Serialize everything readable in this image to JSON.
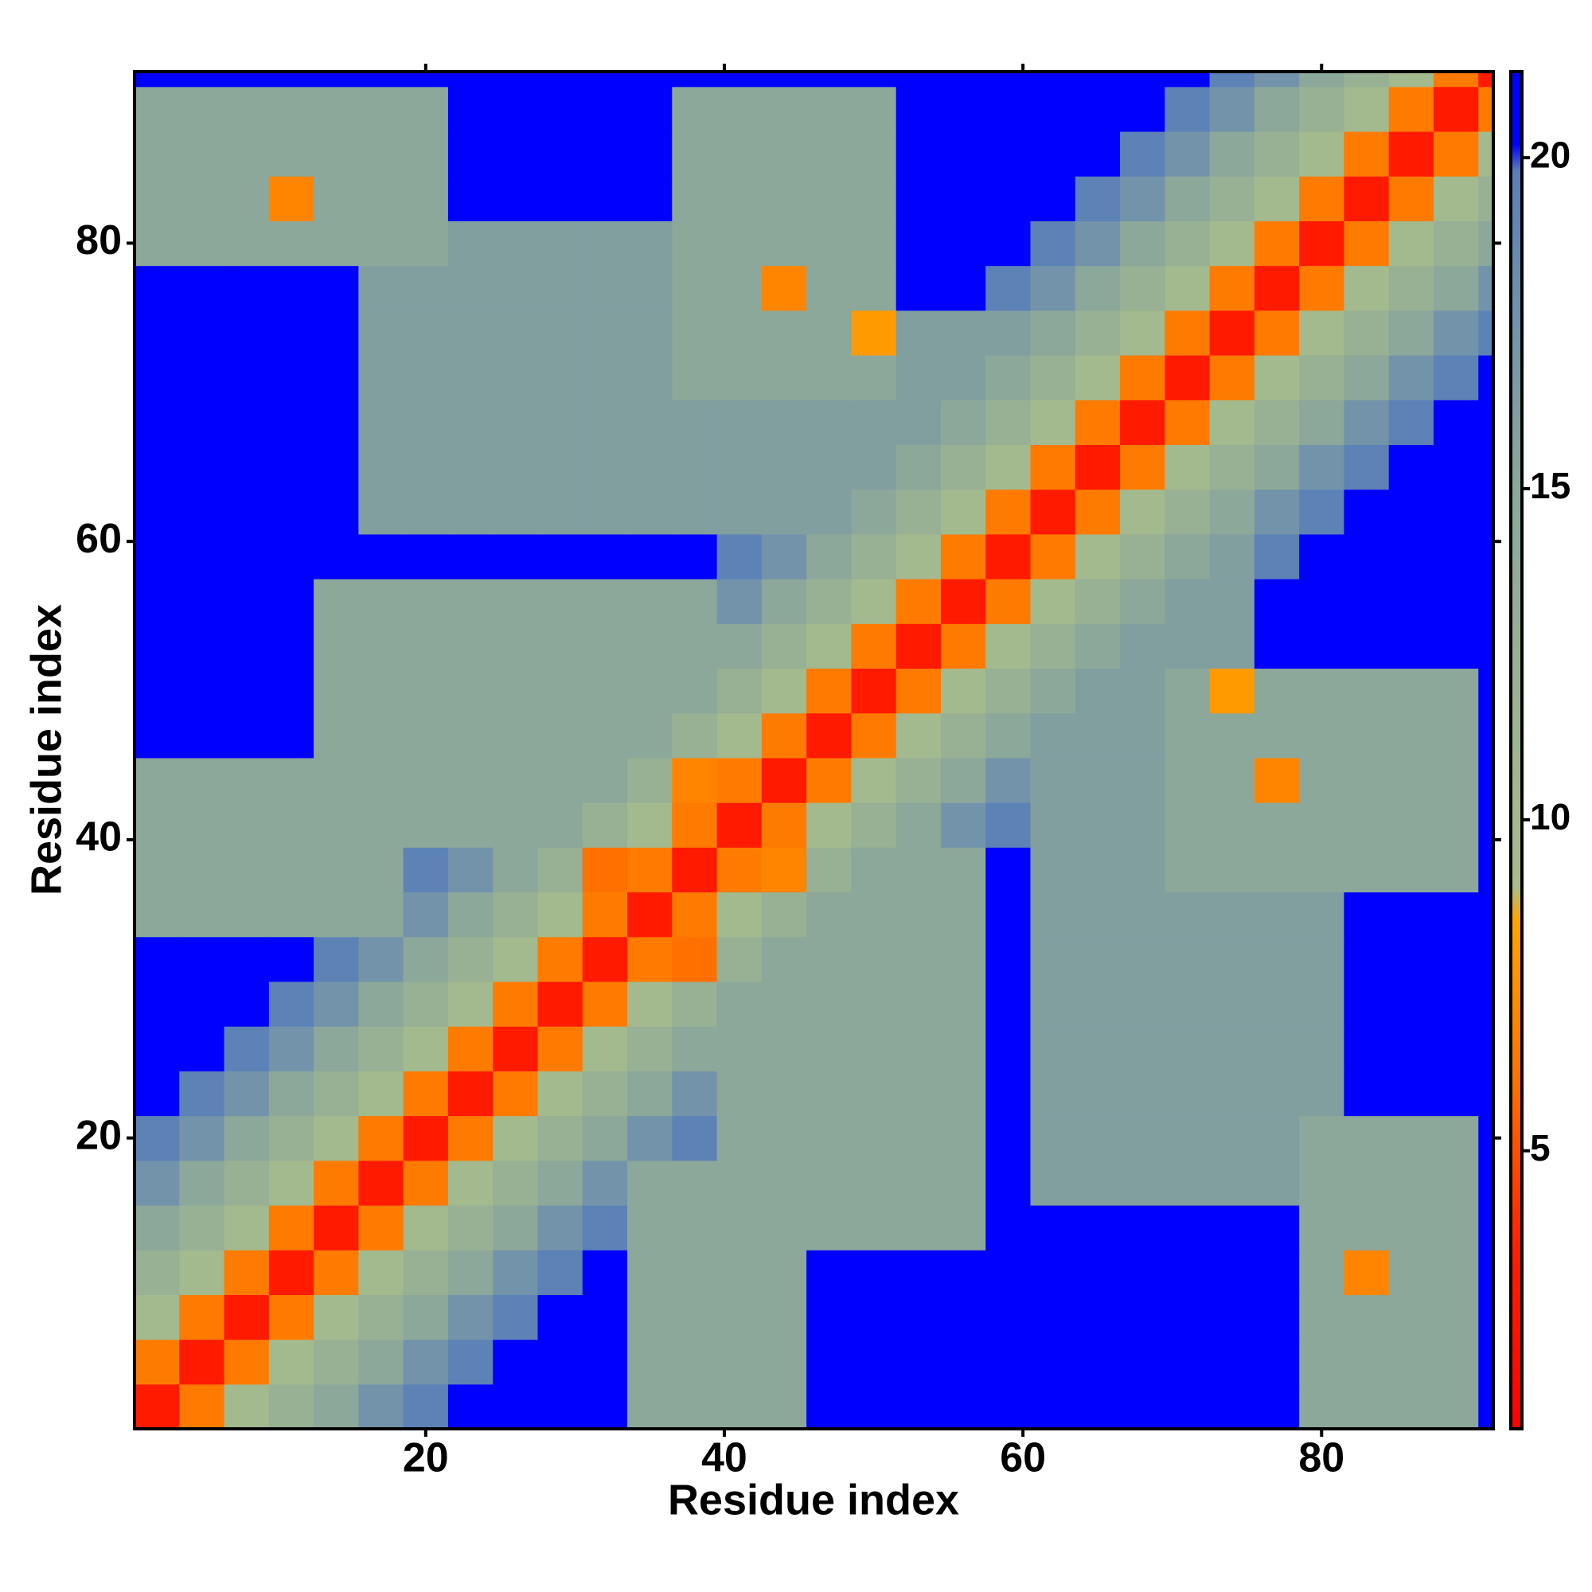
{
  "chart_data": {
    "type": "heatmap",
    "xlabel": "Residue index",
    "ylabel": "Residue index",
    "xbins": [
      0.5,
      3.5,
      6.5,
      9.5,
      12.5,
      15.5,
      18.5,
      21.5,
      24.5,
      27.5,
      30.5,
      33.5,
      36.5,
      39.5,
      42.5,
      45.5,
      48.5,
      51.5,
      54.5,
      57.5,
      60.5,
      63.5,
      66.5,
      69.5,
      72.5,
      75.5,
      78.5,
      81.5,
      84.5,
      87.5,
      90.5,
      91.5
    ],
    "ybins": [
      0.5,
      3.5,
      6.5,
      9.5,
      12.5,
      15.5,
      18.5,
      21.5,
      24.5,
      27.5,
      30.5,
      33.5,
      36.5,
      39.5,
      42.5,
      45.5,
      48.5,
      51.5,
      54.5,
      57.5,
      60.5,
      63.5,
      66.5,
      69.5,
      72.5,
      75.5,
      78.5,
      81.5,
      84.5,
      87.5,
      90.5,
      91.5
    ],
    "xlim": [
      0.5,
      91.5
    ],
    "ylim": [
      0.5,
      91.5
    ],
    "xticks": [
      20,
      40,
      60,
      80
    ],
    "yticks": [
      20,
      40,
      60,
      80
    ],
    "colorbar": {
      "lim": [
        0.8,
        21.3
      ],
      "ticks": [
        5,
        10,
        15,
        20
      ]
    },
    "colorscale": [
      [
        0.8,
        "#ff0000"
      ],
      [
        3.5,
        "#ff2000"
      ],
      [
        6,
        "#ff7000"
      ],
      [
        8.5,
        "#ffa500"
      ],
      [
        9,
        "#a8bc8c"
      ],
      [
        15,
        "#8ca89a"
      ],
      [
        19.8,
        "#5a7fb8"
      ],
      [
        20.2,
        "#0000ff"
      ],
      [
        21.3,
        "#0000ff"
      ]
    ],
    "values": [
      [
        3,
        6.5,
        10,
        12.5,
        15,
        17.5,
        19.5,
        21,
        21,
        21,
        21,
        15,
        15,
        15,
        15,
        21,
        21,
        21,
        21,
        21,
        21,
        21,
        21,
        21,
        21,
        21,
        15,
        15,
        15,
        15,
        21
      ],
      [
        6.5,
        3,
        6.5,
        10,
        12.5,
        15,
        17.5,
        19.5,
        21,
        21,
        21,
        15,
        15,
        15,
        15,
        21,
        21,
        21,
        21,
        21,
        21,
        21,
        21,
        21,
        21,
        21,
        15,
        15,
        15,
        15,
        21
      ],
      [
        10,
        6.5,
        3,
        6.5,
        10,
        12.5,
        15,
        17.5,
        19.5,
        21,
        21,
        15,
        15,
        15,
        15,
        21,
        21,
        21,
        21,
        21,
        21,
        21,
        21,
        21,
        21,
        21,
        15,
        15,
        15,
        15,
        21
      ],
      [
        12.5,
        10,
        6.5,
        3,
        6.5,
        10,
        12.5,
        15,
        17.5,
        19.5,
        21,
        15,
        15,
        15,
        15,
        21,
        21,
        21,
        21,
        21,
        21,
        21,
        21,
        21,
        21,
        21,
        15,
        7,
        15,
        15,
        21
      ],
      [
        15,
        12.5,
        10,
        6.5,
        3,
        6.5,
        10,
        12.5,
        15,
        17.5,
        19.5,
        15,
        15,
        15,
        15,
        15,
        15,
        15,
        15,
        21,
        21,
        21,
        21,
        21,
        21,
        21,
        15,
        15,
        15,
        15,
        21
      ],
      [
        17.5,
        15,
        12.5,
        10,
        6.5,
        3,
        6.5,
        10,
        12.5,
        15,
        17.5,
        15,
        15,
        15,
        15,
        15,
        15,
        15,
        15,
        21,
        16,
        16,
        16,
        16,
        16,
        16,
        15,
        15,
        15,
        15,
        21
      ],
      [
        19.5,
        17.5,
        15,
        12.5,
        10,
        6.5,
        3,
        6.5,
        10,
        12.5,
        15,
        17.5,
        19.5,
        15,
        15,
        15,
        15,
        15,
        15,
        21,
        16,
        16,
        16,
        16,
        16,
        16,
        15,
        15,
        15,
        15,
        21
      ],
      [
        21,
        19.5,
        17.5,
        15,
        12.5,
        10,
        6.5,
        3,
        6.5,
        10,
        12.5,
        15,
        17.5,
        15,
        15,
        15,
        15,
        15,
        15,
        21,
        16,
        16,
        16,
        16,
        16,
        16,
        16,
        21,
        21,
        21,
        21
      ],
      [
        21,
        21,
        19.5,
        17.5,
        15,
        12.5,
        10,
        6.5,
        3,
        6.5,
        10,
        12.5,
        15,
        15,
        15,
        15,
        15,
        15,
        15,
        21,
        16,
        16,
        16,
        16,
        16,
        16,
        16,
        21,
        21,
        21,
        21
      ],
      [
        21,
        21,
        21,
        19.5,
        17.5,
        15,
        12.5,
        10,
        6.5,
        3,
        6.5,
        10,
        12.5,
        15,
        15,
        15,
        15,
        15,
        15,
        21,
        16,
        16,
        16,
        16,
        16,
        16,
        16,
        21,
        21,
        21,
        21
      ],
      [
        21,
        21,
        21,
        21,
        19.5,
        17.5,
        15,
        12.5,
        10,
        6.5,
        3,
        6.5,
        6,
        12.5,
        15,
        15,
        15,
        15,
        15,
        21,
        16,
        16,
        16,
        16,
        16,
        16,
        16,
        21,
        21,
        21,
        21
      ],
      [
        15,
        15,
        15,
        15,
        15,
        15,
        17.5,
        15,
        12.5,
        10,
        6.5,
        3,
        6.5,
        10,
        12.5,
        15,
        15,
        15,
        15,
        21,
        16,
        16,
        16,
        16,
        16,
        16,
        16,
        21,
        21,
        21,
        21
      ],
      [
        15,
        15,
        15,
        15,
        15,
        15,
        19.5,
        17.5,
        15,
        12.5,
        6,
        6.5,
        3,
        6.5,
        7,
        12.5,
        15,
        15,
        15,
        21,
        16,
        16,
        16,
        15,
        15,
        15,
        15,
        15,
        15,
        15,
        21
      ],
      [
        15,
        15,
        15,
        15,
        15,
        15,
        15,
        15,
        15,
        15,
        12.5,
        10,
        6.5,
        3,
        6.5,
        10,
        12.5,
        15,
        17.5,
        19.5,
        16,
        16,
        16,
        15,
        15,
        15,
        15,
        15,
        15,
        15,
        21
      ],
      [
        15,
        15,
        15,
        15,
        15,
        15,
        15,
        15,
        15,
        15,
        15,
        12.5,
        7,
        6.5,
        3,
        6.5,
        10,
        12.5,
        15,
        17.5,
        16,
        16,
        16,
        15,
        15,
        7,
        15,
        15,
        15,
        15,
        21
      ],
      [
        21,
        21,
        21,
        21,
        15,
        15,
        15,
        15,
        15,
        15,
        15,
        15,
        12.5,
        10,
        6.5,
        3,
        6.5,
        10,
        12.5,
        15,
        16,
        16,
        16,
        15,
        15,
        15,
        15,
        15,
        15,
        15,
        21
      ],
      [
        21,
        21,
        21,
        21,
        15,
        15,
        15,
        15,
        15,
        15,
        15,
        15,
        15,
        12.5,
        10,
        6.5,
        3,
        6.5,
        10,
        12.5,
        15,
        16,
        16,
        15,
        8,
        15,
        15,
        15,
        15,
        15,
        21
      ],
      [
        21,
        21,
        21,
        21,
        15,
        15,
        15,
        15,
        15,
        15,
        15,
        15,
        15,
        15,
        12.5,
        10,
        6.5,
        3,
        6.5,
        10,
        12.5,
        15,
        16,
        16,
        16,
        21,
        21,
        21,
        21,
        21,
        21
      ],
      [
        21,
        21,
        21,
        21,
        15,
        15,
        15,
        15,
        15,
        15,
        15,
        15,
        15,
        17.5,
        15,
        12.5,
        10,
        6.5,
        3,
        6.5,
        10,
        12.5,
        15,
        16,
        16,
        21,
        21,
        21,
        21,
        21,
        21
      ],
      [
        21,
        21,
        21,
        21,
        21,
        21,
        21,
        21,
        21,
        21,
        21,
        21,
        21,
        19.5,
        17.5,
        15,
        12.5,
        10,
        6.5,
        3,
        6.5,
        10,
        12.5,
        15,
        16,
        19.5,
        21,
        21,
        21,
        21,
        21
      ],
      [
        21,
        21,
        21,
        21,
        21,
        16,
        16,
        16,
        16,
        16,
        16,
        16,
        16,
        16,
        16,
        16,
        15,
        12.5,
        10,
        6.5,
        3,
        6.5,
        10,
        12.5,
        15,
        17.5,
        19.5,
        21,
        21,
        21,
        21
      ],
      [
        21,
        21,
        21,
        21,
        21,
        16,
        16,
        16,
        16,
        16,
        16,
        16,
        16,
        16,
        16,
        16,
        16,
        15,
        12.5,
        10,
        6.5,
        3,
        6.5,
        10,
        12.5,
        15,
        17.5,
        19.5,
        21,
        21,
        21
      ],
      [
        21,
        21,
        21,
        21,
        21,
        16,
        16,
        16,
        16,
        16,
        16,
        16,
        16,
        16,
        16,
        16,
        16,
        16,
        15,
        12.5,
        10,
        6.5,
        3,
        6.5,
        10,
        12.5,
        15,
        17.5,
        19.5,
        21,
        21
      ],
      [
        21,
        21,
        21,
        21,
        21,
        16,
        16,
        16,
        16,
        16,
        16,
        16,
        15,
        15,
        15,
        15,
        15,
        16,
        16,
        15,
        12.5,
        10,
        6.5,
        3,
        6.5,
        10,
        12.5,
        15,
        17.5,
        19.5,
        21
      ],
      [
        21,
        21,
        21,
        21,
        21,
        16,
        16,
        16,
        16,
        16,
        16,
        16,
        15,
        15,
        15,
        15,
        8,
        16,
        16,
        16,
        15,
        12.5,
        10,
        6.5,
        3,
        6.5,
        10,
        12.5,
        15,
        17.5,
        19.5
      ],
      [
        21,
        21,
        21,
        21,
        21,
        16,
        16,
        16,
        16,
        16,
        16,
        16,
        15,
        15,
        7,
        15,
        15,
        21,
        21,
        19.5,
        17.5,
        15,
        12.5,
        10,
        6.5,
        3,
        6.5,
        10,
        12.5,
        15,
        17.5
      ],
      [
        15,
        15,
        15,
        15,
        15,
        15,
        15,
        16,
        16,
        16,
        16,
        16,
        15,
        15,
        15,
        15,
        15,
        21,
        21,
        21,
        19.5,
        17.5,
        15,
        12.5,
        10,
        6.5,
        3,
        6.5,
        10,
        12.5,
        15
      ],
      [
        15,
        15,
        15,
        7,
        15,
        15,
        15,
        21,
        21,
        21,
        21,
        21,
        15,
        15,
        15,
        15,
        15,
        21,
        21,
        21,
        21,
        19.5,
        17.5,
        15,
        12.5,
        10,
        6.5,
        3,
        6.5,
        10,
        12.5
      ],
      [
        15,
        15,
        15,
        15,
        15,
        15,
        15,
        21,
        21,
        21,
        21,
        21,
        15,
        15,
        15,
        15,
        15,
        21,
        21,
        21,
        21,
        21,
        19.5,
        17.5,
        15,
        12.5,
        10,
        6.5,
        3,
        6.5,
        10
      ],
      [
        15,
        15,
        15,
        15,
        15,
        15,
        15,
        21,
        21,
        21,
        21,
        21,
        15,
        15,
        15,
        15,
        15,
        21,
        21,
        21,
        21,
        21,
        21,
        19.5,
        17.5,
        15,
        12.5,
        10,
        6.5,
        3,
        6.5
      ],
      [
        21,
        21,
        21,
        21,
        21,
        21,
        21,
        21,
        21,
        21,
        21,
        21,
        21,
        21,
        21,
        21,
        21,
        21,
        21,
        21,
        21,
        21,
        21,
        21,
        19.5,
        17.5,
        15,
        12.5,
        10,
        6.5,
        3
      ]
    ]
  }
}
